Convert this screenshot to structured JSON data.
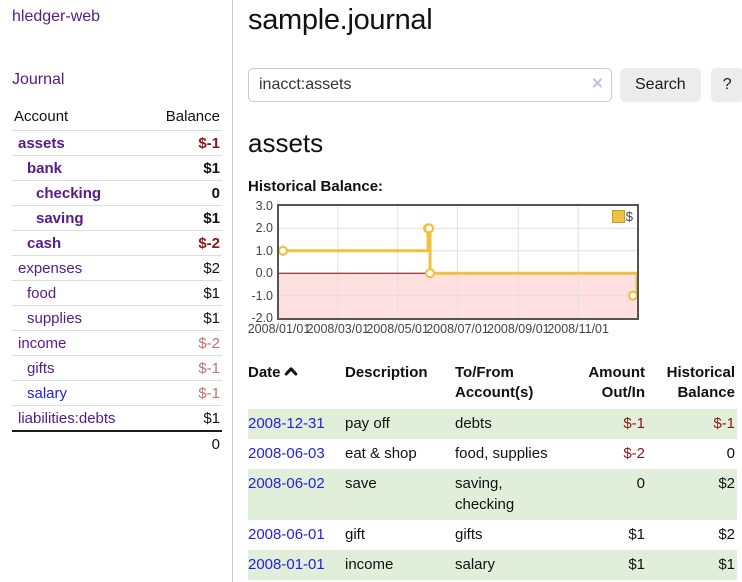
{
  "colors": {
    "link_purple": "#551a8b",
    "link_blue": "#2222dd",
    "negative_strong": "#861919",
    "negative_muted": "#bd7575",
    "row_stripe_green": "#e1efda",
    "series_gold": "#EDC240",
    "negative_region_pink": "#ffe0e0",
    "zero_line_red": "#8b0000",
    "grid_line": "#e0e0e0",
    "plot_border": "#545454"
  },
  "sidebar": {
    "app_title": "hledger-web",
    "journal_label": "Journal",
    "accounts_table": {
      "headers": {
        "account": "Account",
        "balance": "Balance"
      },
      "rows": [
        {
          "name": "assets",
          "balance": "$-1",
          "level": 0,
          "emphasis": true,
          "balance_tone": "neg-strong",
          "link_tone": "purple"
        },
        {
          "name": "bank",
          "balance": "$1",
          "level": 1,
          "emphasis": true,
          "balance_tone": "plain",
          "link_tone": "purple"
        },
        {
          "name": "checking",
          "balance": "0",
          "level": 2,
          "emphasis": true,
          "balance_tone": "plain",
          "link_tone": "purple"
        },
        {
          "name": "saving",
          "balance": "$1",
          "level": 2,
          "emphasis": true,
          "balance_tone": "plain",
          "link_tone": "purple"
        },
        {
          "name": "cash",
          "balance": "$-2",
          "level": 1,
          "emphasis": true,
          "balance_tone": "neg-strong",
          "link_tone": "purple"
        },
        {
          "name": "expenses",
          "balance": "$2",
          "level": 0,
          "emphasis": false,
          "balance_tone": "plain",
          "link_tone": "purple"
        },
        {
          "name": "food",
          "balance": "$1",
          "level": 1,
          "emphasis": false,
          "balance_tone": "plain",
          "link_tone": "purple"
        },
        {
          "name": "supplies",
          "balance": "$1",
          "level": 1,
          "emphasis": false,
          "balance_tone": "plain",
          "link_tone": "purple"
        },
        {
          "name": "income",
          "balance": "$-2",
          "level": 0,
          "emphasis": false,
          "balance_tone": "neg-muted",
          "link_tone": "purple"
        },
        {
          "name": "gifts",
          "balance": "$-1",
          "level": 1,
          "emphasis": false,
          "balance_tone": "neg-muted",
          "link_tone": "purple"
        },
        {
          "name": "salary",
          "balance": "$-1",
          "level": 1,
          "emphasis": false,
          "balance_tone": "neg-muted",
          "link_tone": "blue"
        },
        {
          "name": "liabilities:debts",
          "balance": "$1",
          "level": 0,
          "emphasis": false,
          "balance_tone": "plain",
          "link_tone": "purple"
        }
      ],
      "total": "0"
    }
  },
  "header": {
    "title": "sample.journal"
  },
  "search": {
    "value": "inacct:assets",
    "clear_glyph": "×",
    "button_label": "Search",
    "help_label": "?"
  },
  "account_page": {
    "heading": "assets",
    "chart_label": "Historical Balance:"
  },
  "chart_data": {
    "type": "line",
    "step": true,
    "title": "Historical Balance",
    "ylim": [
      -2,
      3
    ],
    "yticks": [
      "3.0",
      "2.0",
      "1.0",
      "0.0",
      "-1.0",
      "-2.0"
    ],
    "xticks": [
      "2008/01/01",
      "2008/03/01",
      "2008/05/01",
      "2008/07/01",
      "2008/09/01",
      "2008/11/01"
    ],
    "legend": {
      "label": "$",
      "position": "top-right"
    },
    "grid": true,
    "series": [
      {
        "name": "$",
        "color": "#EDC240",
        "points": [
          {
            "date": "2008-01-01",
            "value": 1
          },
          {
            "date": "2008-06-01",
            "value": 2
          },
          {
            "date": "2008-06-02",
            "value": 2
          },
          {
            "date": "2008-06-03",
            "value": 0
          },
          {
            "date": "2008-12-31",
            "value": -1
          }
        ]
      }
    ]
  },
  "register_table": {
    "headers": {
      "date": "Date",
      "description": "Description",
      "account": "To/From Account(s)",
      "amount": "Amount Out/In",
      "balance": "Historical Balance"
    },
    "sort_icon": "chevron-up",
    "rows": [
      {
        "date": "2008-12-31",
        "description": "pay off",
        "accounts": "debts",
        "amount": "$-1",
        "balance": "$-1",
        "amount_neg": true,
        "balance_neg": true
      },
      {
        "date": "2008-06-03",
        "description": "eat & shop",
        "accounts": "food, supplies",
        "amount": "$-2",
        "balance": "0",
        "amount_neg": true,
        "balance_neg": false
      },
      {
        "date": "2008-06-02",
        "description": "save",
        "accounts": "saving, checking",
        "amount": "0",
        "balance": "$2",
        "amount_neg": false,
        "balance_neg": false
      },
      {
        "date": "2008-06-01",
        "description": "gift",
        "accounts": "gifts",
        "amount": "$1",
        "balance": "$2",
        "amount_neg": false,
        "balance_neg": false
      },
      {
        "date": "2008-01-01",
        "description": "income",
        "accounts": "salary",
        "amount": "$1",
        "balance": "$1",
        "amount_neg": false,
        "balance_neg": false
      }
    ]
  }
}
